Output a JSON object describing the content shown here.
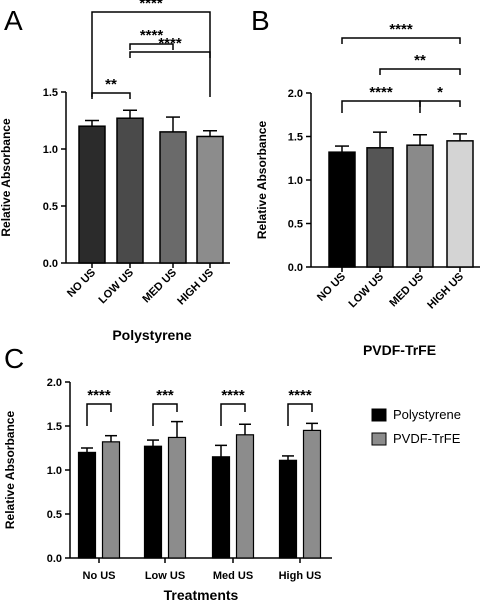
{
  "chart_data": [
    {
      "type": "bar",
      "panel": "A",
      "categories": [
        "NO US",
        "LOW US",
        "MED US",
        "HIGH US"
      ],
      "values": [
        1.2,
        1.27,
        1.15,
        1.11
      ],
      "errors": [
        0.05,
        0.07,
        0.13,
        0.05
      ],
      "colors": [
        "#2b2b2b",
        "#4a4a4a",
        "#6a6a6a",
        "#8c8c8c"
      ],
      "xlabel": "Polystyrene",
      "ylabel": "Relative  Absorbance",
      "ylim": [
        0,
        1.5
      ],
      "yticks": [
        "0.0",
        "0.5",
        "1.0",
        "1.5"
      ],
      "significance": [
        {
          "from": 0,
          "to": 1,
          "label": "**"
        },
        {
          "from": 1,
          "to": 3,
          "label": "****"
        },
        {
          "from": 1,
          "to": 2,
          "label": "****"
        },
        {
          "from": 0,
          "to": 3,
          "label": "****"
        }
      ]
    },
    {
      "type": "bar",
      "panel": "B",
      "categories": [
        "NO US",
        "LOW US",
        "MED US",
        "HIGH US"
      ],
      "values": [
        1.32,
        1.37,
        1.4,
        1.45
      ],
      "errors": [
        0.07,
        0.18,
        0.12,
        0.08
      ],
      "colors": [
        "#000000",
        "#555555",
        "#8a8a8a",
        "#d4d4d4"
      ],
      "xlabel": "PVDF-TrFE",
      "ylabel": "Relative  Absorbance",
      "ylim": [
        0,
        2.0
      ],
      "yticks": [
        "0.0",
        "0.5",
        "1.0",
        "1.5",
        "2.0"
      ],
      "significance": [
        {
          "from": 0,
          "to": 2,
          "label": "****"
        },
        {
          "from": 2,
          "to": 3,
          "label": "*"
        },
        {
          "from": 1,
          "to": 3,
          "label": "**"
        },
        {
          "from": 0,
          "to": 3,
          "label": "****"
        }
      ]
    },
    {
      "type": "bar",
      "panel": "C",
      "categories": [
        "No US",
        "Low US",
        "Med US",
        "High US"
      ],
      "series": [
        {
          "name": "Polystyrene",
          "color": "#000000",
          "values": [
            1.2,
            1.27,
            1.15,
            1.11
          ],
          "errors": [
            0.05,
            0.07,
            0.13,
            0.05
          ]
        },
        {
          "name": "PVDF-TrFE",
          "color": "#8c8c8c",
          "values": [
            1.32,
            1.37,
            1.4,
            1.45
          ],
          "errors": [
            0.07,
            0.18,
            0.12,
            0.08
          ]
        }
      ],
      "xlabel": "Treatments",
      "ylabel": "Relative  Absorbance",
      "ylim": [
        0,
        2.0
      ],
      "yticks": [
        "0.0",
        "0.5",
        "1.0",
        "1.5",
        "2.0"
      ],
      "significance": [
        "****",
        "***",
        "****",
        "****"
      ],
      "legend_position": "right"
    }
  ]
}
